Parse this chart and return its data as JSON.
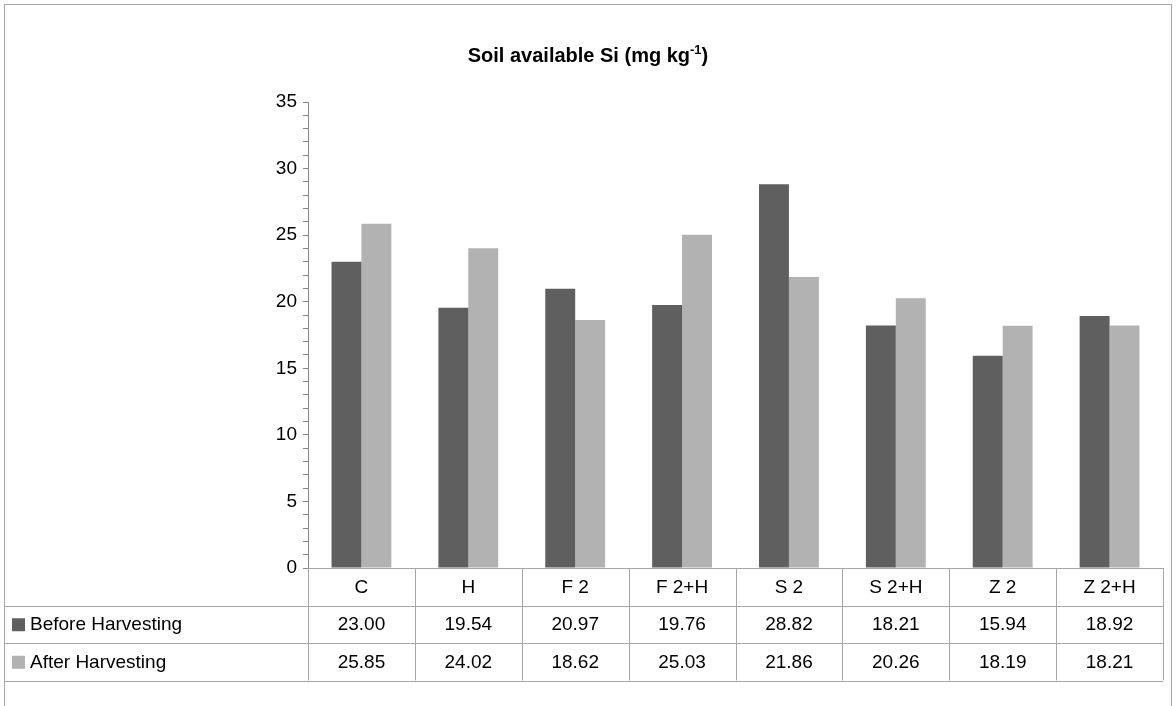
{
  "chart_data": {
    "type": "bar",
    "title": "Soil available Si (mg kg$^{-1}$)",
    "categories": [
      "C",
      "H",
      "F 2",
      "F 2+H",
      "S 2",
      "S 2+H",
      "Z 2",
      "Z 2+H"
    ],
    "series": [
      {
        "name": "Before Harvesting",
        "color": "#5f5f5f",
        "values": [
          23.0,
          19.54,
          20.97,
          19.76,
          28.82,
          18.21,
          15.94,
          18.92
        ],
        "value_labels": [
          "23.00",
          "19.54",
          "20.97",
          "19.76",
          "28.82",
          "18.21",
          "15.94",
          "18.92"
        ]
      },
      {
        "name": "After Harvesting",
        "color": "#b2b2b2",
        "values": [
          25.85,
          24.02,
          18.62,
          25.03,
          21.86,
          20.26,
          18.19,
          18.21
        ],
        "value_labels": [
          "25.85",
          "24.02",
          "18.62",
          "25.03",
          "21.86",
          "20.26",
          "18.19",
          "18.21"
        ]
      }
    ],
    "ylim": [
      0,
      35
    ],
    "yticks": [
      0,
      {
        "value": 1,
        "label": null
      },
      {
        "value": 2,
        "label": null
      },
      {
        "value": 3,
        "label": null
      },
      {
        "value": 4,
        "label": null
      },
      5,
      {
        "value": 6,
        "label": null
      },
      {
        "value": 7,
        "label": null
      },
      {
        "value": 8,
        "label": null
      },
      {
        "value": 9,
        "label": null
      },
      10,
      {
        "value": 11,
        "label": null
      },
      {
        "value": 12,
        "label": null
      },
      {
        "value": 13,
        "label": null
      },
      {
        "value": 14,
        "label": null
      },
      15,
      {
        "value": 16,
        "label": null
      },
      {
        "value": 17,
        "label": null
      },
      {
        "value": 18,
        "label": null
      },
      {
        "value": 19,
        "label": null
      },
      20,
      {
        "value": 21,
        "label": null
      },
      {
        "value": 22,
        "label": null
      },
      {
        "value": 23,
        "label": null
      },
      {
        "value": 24,
        "label": null
      },
      25,
      {
        "value": 26,
        "label": null
      },
      {
        "value": 27,
        "label": null
      },
      {
        "value": 28,
        "label": null
      },
      {
        "value": 29,
        "label": null
      },
      30,
      {
        "value": 31,
        "label": null
      },
      {
        "value": 32,
        "label": null
      },
      {
        "value": 33,
        "label": null
      },
      {
        "value": 34,
        "label": null
      },
      35
    ],
    "grid": false,
    "legend": "bottom"
  }
}
